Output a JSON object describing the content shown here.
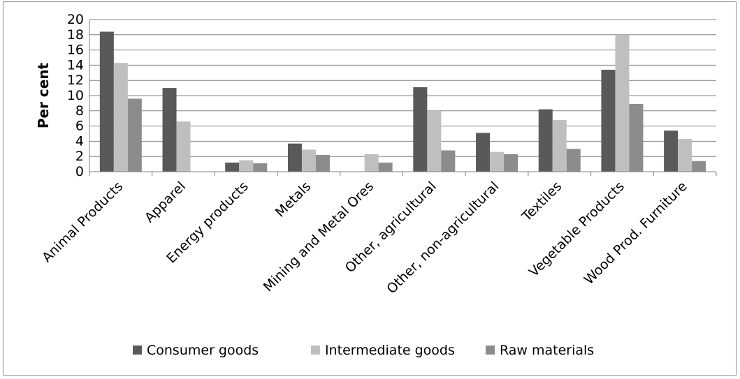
{
  "chart_data": {
    "type": "bar",
    "title": "",
    "xlabel": "",
    "ylabel": "Per cent",
    "ylim": [
      0,
      20
    ],
    "yticks": [
      0,
      2,
      4,
      6,
      8,
      10,
      12,
      14,
      16,
      18,
      20
    ],
    "grid": true,
    "legend_position": "bottom",
    "categories": [
      "Animal Products",
      "Apparel",
      "Energy products",
      "Metals",
      "Mining and Metal Ores",
      "Other, agricultural",
      "Other, non-agricultural",
      "Textiles",
      "Vegetable Products",
      "Wood Prod. Furniture"
    ],
    "series": [
      {
        "name": "Consumer goods",
        "color": "#595959",
        "values": [
          18.4,
          11.0,
          1.2,
          3.7,
          0,
          11.1,
          5.1,
          8.2,
          13.4,
          5.4
        ]
      },
      {
        "name": "Intermediate goods",
        "color": "#bfbfbf",
        "values": [
          14.3,
          6.6,
          1.5,
          2.9,
          2.3,
          8.0,
          2.6,
          6.8,
          18.0,
          4.3
        ]
      },
      {
        "name": "Raw materials",
        "color": "#8c8c8c",
        "values": [
          9.6,
          0,
          1.1,
          2.2,
          1.2,
          2.8,
          2.3,
          3.0,
          8.9,
          1.4
        ]
      }
    ]
  }
}
